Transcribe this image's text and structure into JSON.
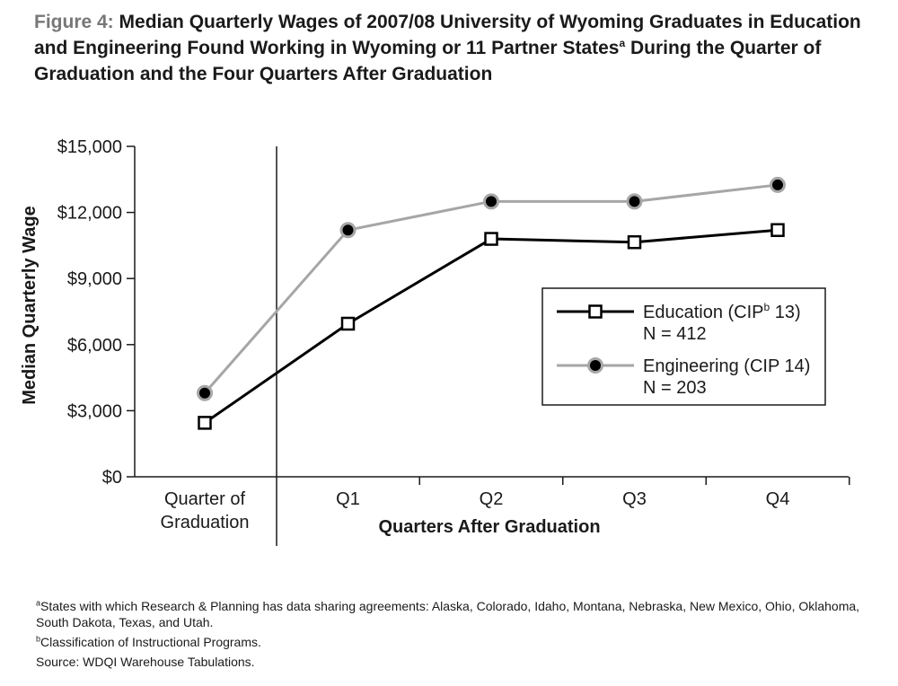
{
  "title": {
    "figure_label": "Figure 4:",
    "text_part1": "Median Quarterly Wages of 2007/08 University of Wyoming Graduates in Education and Engineering Found Working in Wyoming or 11 Partner States",
    "superscript": "a",
    "text_part2": " During the Quarter of Graduation and the Four Quarters After Graduation"
  },
  "chart_data": {
    "type": "line",
    "categories": [
      [
        "Quarter of",
        "Graduation"
      ],
      [
        "Q1"
      ],
      [
        "Q2"
      ],
      [
        "Q3"
      ],
      [
        "Q4"
      ]
    ],
    "xlabel": "Quarters After Graduation",
    "ylabel": "Median Quarterly Wage",
    "ylim": [
      0,
      15000
    ],
    "y_ticks": [
      0,
      3000,
      6000,
      9000,
      12000,
      15000
    ],
    "y_tick_labels": [
      "$0",
      "$3,000",
      "$6,000",
      "$9,000",
      "$12,000",
      "$15,000"
    ],
    "grid": false,
    "legend_position": "right",
    "series": [
      {
        "name_prefix": "Education (CIP",
        "name_sup": "b",
        "name_suffix": " 13)",
        "n_label": "N = 412",
        "values": [
          2450,
          6950,
          10800,
          10650,
          11200
        ],
        "color": "#000000",
        "marker": "hollow-square"
      },
      {
        "name_prefix": "Engineering (CIP 14)",
        "name_sup": "",
        "name_suffix": "",
        "n_label": "N = 203",
        "values": [
          3800,
          11200,
          12500,
          12500,
          13250
        ],
        "color": "#a6a6a6",
        "marker": "black-dot-gray-ring"
      }
    ]
  },
  "footnotes": {
    "a_mark": "a",
    "a_text": "States with which Research & Planning has data sharing agreements: Alaska, Colorado, Idaho, Montana, Nebraska, New Mexico, Ohio, Oklahoma, South Dakota, Texas, and Utah.",
    "b_mark": "b",
    "b_text": "Classification of Instructional Programs.",
    "source": "Source: WDQI Warehouse Tabulations."
  }
}
